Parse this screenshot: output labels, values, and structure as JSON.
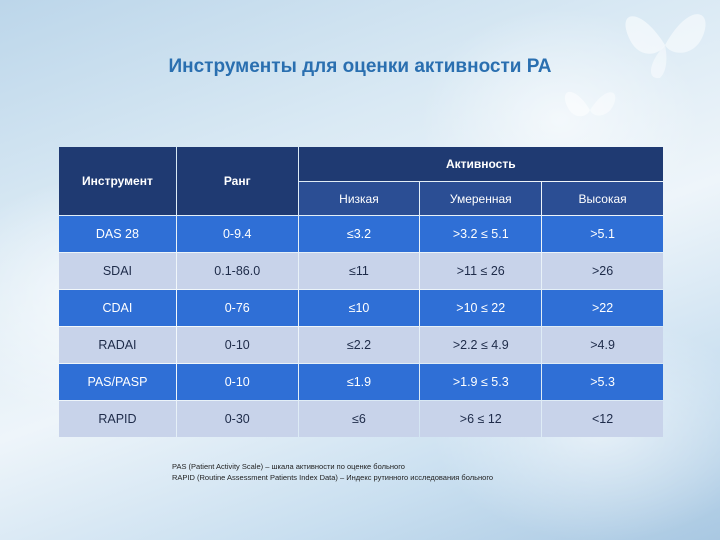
{
  "title": "Инструменты для оценки активности РА",
  "table": {
    "col_instrument": "Инструмент",
    "col_range": "Ранг",
    "col_activity": "Активность",
    "activity_levels": [
      "Низкая",
      "Умеренная",
      "Высокая"
    ],
    "rows": [
      {
        "instrument": "DAS 28",
        "range": "0-9.4",
        "low": "≤3.2",
        "moderate": ">3.2 ≤ 5.1",
        "high": ">5.1"
      },
      {
        "instrument": "SDAI",
        "range": "0.1-86.0",
        "low": "≤11",
        "moderate": ">11 ≤ 26",
        "high": ">26"
      },
      {
        "instrument": "CDAI",
        "range": "0-76",
        "low": "≤10",
        "moderate": ">10 ≤ 22",
        "high": ">22"
      },
      {
        "instrument": "RADAI",
        "range": "0-10",
        "low": "≤2.2",
        "moderate": ">2.2 ≤ 4.9",
        "high": ">4.9"
      },
      {
        "instrument": "PAS/PASP",
        "range": "0-10",
        "low": "≤1.9",
        "moderate": ">1.9 ≤ 5.3",
        "high": ">5.3"
      },
      {
        "instrument": "RAPID",
        "range": "0-30",
        "low": "≤6",
        "moderate": ">6 ≤ 12",
        "high": "<12"
      }
    ]
  },
  "notes": [
    "PAS (Patient Activity Scale) – шкала активности по оценке больного",
    "RAPID (Routine Assessment Patients Index Data) – Индекс рутинного исследования больного"
  ],
  "colors": {
    "header": "#1f3a72",
    "row_dark": "#2f6fd6",
    "row_light": "#c8d3ea",
    "title": "#2a6fb0"
  }
}
